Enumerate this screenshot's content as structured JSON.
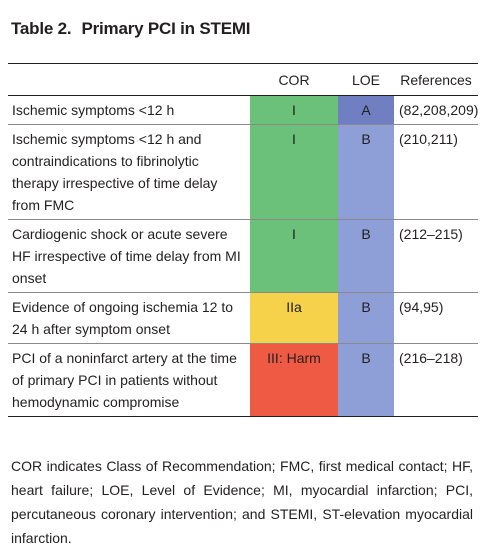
{
  "title": {
    "number": "Table 2.",
    "text": "Primary PCI in STEMI"
  },
  "table": {
    "headers": {
      "condition": "",
      "cor": "COR",
      "loe": "LOE",
      "references": "References"
    },
    "rows": [
      {
        "condition": "Ischemic symptoms <12 h",
        "cor": "I",
        "loe": "A",
        "references": "(82,208,209)",
        "cor_color": "#6cc17a",
        "loe_color": "#6f7fc2"
      },
      {
        "condition": "Ischemic symptoms <12 h and contraindications to fibrinolytic therapy irrespective of time delay from FMC",
        "cor": "I",
        "loe": "B",
        "references": "(210,211)",
        "cor_color": "#6cc17a",
        "loe_color": "#8d9fd6"
      },
      {
        "condition": "Cardiogenic shock or acute severe HF irrespective of time delay from MI onset",
        "cor": "I",
        "loe": "B",
        "references": "(212–215)",
        "cor_color": "#6cc17a",
        "loe_color": "#8d9fd6"
      },
      {
        "condition": "Evidence of ongoing ischemia 12 to 24 h after symptom onset",
        "cor": "IIa",
        "loe": "B",
        "references": "(94,95)",
        "cor_color": "#f6d24a",
        "loe_color": "#8d9fd6"
      },
      {
        "condition": "PCI of a noninfarct artery at the time of primary PCI in patients without hemodynamic compromise",
        "cor": "III: Harm",
        "loe": "B",
        "references": "(216–218)",
        "cor_color": "#ee5a44",
        "loe_color": "#8d9fd6"
      }
    ]
  },
  "footnote": "COR indicates Class of Recommendation; FMC, first medical contact; HF, heart failure; LOE, Level of Evidence; MI, myocardial infarction; PCI, percutaneous coronary intervention; and STEMI, ST-elevation myocardial infarction."
}
